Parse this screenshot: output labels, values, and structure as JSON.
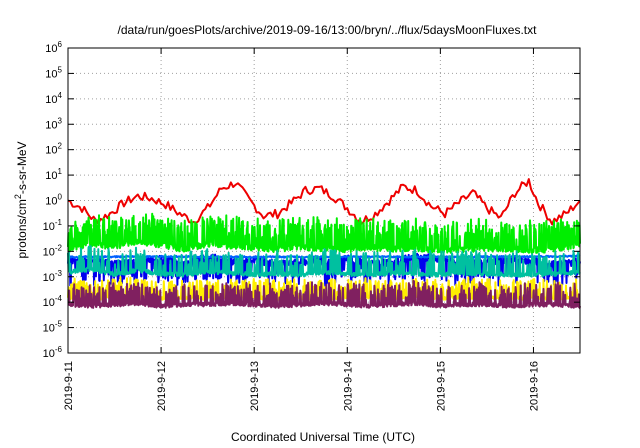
{
  "chart_data": {
    "type": "line",
    "title": "/data/run/goesPlots/archive/2019-09-16/13:00/bryn/../flux/5daysMoonFluxes.txt",
    "xlabel": "Coordinated Universal Time (UTC)",
    "ylabel_parts": [
      "protons/cm",
      "2",
      "-s-sr-MeV"
    ],
    "x_axis": {
      "unit": "days",
      "range": [
        0,
        5.5
      ],
      "ticks": [
        {
          "x": 0,
          "label": "2019-9-11"
        },
        {
          "x": 1,
          "label": "2019-9-12"
        },
        {
          "x": 2,
          "label": "2019-9-13"
        },
        {
          "x": 3,
          "label": "2019-9-14"
        },
        {
          "x": 4,
          "label": "2019-9-15"
        },
        {
          "x": 5,
          "label": "2019-9-16"
        }
      ]
    },
    "y_axis": {
      "scale": "log",
      "range_exp": [
        -6,
        6
      ],
      "tick_base": "10",
      "tick_exps": [
        "-6",
        "-5",
        "-4",
        "-3",
        "-2",
        "-1",
        "0",
        "1",
        "2",
        "3",
        "4",
        "5",
        "6"
      ]
    },
    "grid": true,
    "legend": "none",
    "series": [
      {
        "color": "#ee0000",
        "kind": "red",
        "x": [
          0,
          0.15,
          0.3,
          0.45,
          0.6,
          0.75,
          0.9,
          1.05,
          1.2,
          1.35,
          1.5,
          1.65,
          1.8,
          1.95,
          2.1,
          2.25,
          2.4,
          2.55,
          2.7,
          2.85,
          3.0,
          3.15,
          3.3,
          3.45,
          3.6,
          3.75,
          3.9,
          4.05,
          4.2,
          4.35,
          4.5,
          4.65,
          4.8,
          4.95,
          5.05,
          5.2,
          5.35,
          5.5
        ],
        "y": [
          1.0,
          0.5,
          0.15,
          0.3,
          0.8,
          1.5,
          1.2,
          0.7,
          0.3,
          0.15,
          0.5,
          3.0,
          5.0,
          1.0,
          0.25,
          0.3,
          0.8,
          2.5,
          3.0,
          1.5,
          0.5,
          0.15,
          0.3,
          1.0,
          3.5,
          2.5,
          0.6,
          0.3,
          0.8,
          2.0,
          0.5,
          0.2,
          2.0,
          6.0,
          0.8,
          0.15,
          0.3,
          1.0
        ]
      },
      {
        "color": "#00ee00",
        "kind": "green",
        "x": [
          0,
          0.25,
          0.5,
          0.75,
          1.0,
          1.25,
          1.5,
          1.75,
          2.0,
          2.25,
          2.5,
          2.75,
          3.0,
          3.25,
          3.5,
          3.75,
          4.0,
          4.25,
          4.5,
          4.75,
          5.0,
          5.25,
          5.5
        ],
        "y": [
          0.012,
          0.02,
          0.015,
          0.025,
          0.018,
          0.012,
          0.02,
          0.016,
          0.014,
          0.012,
          0.015,
          0.013,
          0.012,
          0.014,
          0.012,
          0.013,
          0.011,
          0.012,
          0.013,
          0.012,
          0.011,
          0.012,
          0.02
        ]
      },
      {
        "color": "#0000ee",
        "kind": "blue",
        "x": [
          0,
          0.25,
          0.5,
          0.75,
          1.0,
          1.25,
          1.5,
          1.75,
          2.0,
          2.25,
          2.5,
          2.75,
          3.0,
          3.25,
          3.5,
          3.75,
          4.0,
          4.25,
          4.5,
          4.75,
          5.0,
          5.25,
          5.5
        ],
        "y": [
          0.004,
          0.005,
          0.003,
          0.004,
          0.005,
          0.003,
          0.006,
          0.004,
          0.005,
          0.003,
          0.004,
          0.004,
          0.005,
          0.003,
          0.004,
          0.006,
          0.005,
          0.003,
          0.004,
          0.005,
          0.004,
          0.003,
          0.004
        ]
      },
      {
        "color": "#0060ff",
        "kind": "blue2",
        "x": [
          0,
          1,
          2,
          3,
          4,
          5,
          5.5
        ],
        "y": [
          0.006,
          0.0062,
          0.006,
          0.0061,
          0.006,
          0.0062,
          0.0065
        ]
      },
      {
        "color": "#00c0a0",
        "kind": "teal",
        "x": [
          0,
          0.25,
          0.5,
          0.75,
          1.0,
          1.25,
          1.5,
          1.75,
          2.0,
          2.25,
          2.5,
          2.75,
          3.0,
          3.25,
          3.5,
          3.75,
          4.0,
          4.25,
          4.5,
          4.75,
          5.0,
          5.25,
          5.5
        ],
        "y": [
          0.0015,
          0.002,
          0.0012,
          0.0018,
          0.0013,
          0.0012,
          0.0016,
          0.0014,
          0.0012,
          0.0013,
          0.0012,
          0.0015,
          0.0013,
          0.0012,
          0.0014,
          0.0013,
          0.0012,
          0.0014,
          0.0013,
          0.0012,
          0.0012,
          0.0013,
          0.0015
        ]
      },
      {
        "color": "#ffee00",
        "kind": "yellow",
        "x": [
          0,
          0.25,
          0.5,
          0.75,
          1.0,
          1.25,
          1.5,
          1.75,
          2.0,
          2.25,
          2.5,
          2.75,
          3.0,
          3.25,
          3.5,
          3.75,
          4.0,
          4.25,
          4.5,
          4.75,
          5.0,
          5.25,
          5.5
        ],
        "y": [
          0.00015,
          0.00014,
          0.00015,
          0.00016,
          0.00014,
          0.00015,
          0.00014,
          0.00016,
          0.00015,
          0.00014,
          0.00015,
          0.00014,
          0.00015,
          0.00016,
          0.00014,
          0.00015,
          0.00014,
          0.00015,
          0.00016,
          0.00014,
          0.00015,
          0.00014,
          0.00015
        ]
      },
      {
        "color": "#802060",
        "kind": "purple",
        "x": [
          0,
          0.25,
          0.5,
          0.75,
          1.0,
          1.25,
          1.5,
          1.75,
          2.0,
          2.25,
          2.5,
          2.75,
          3.0,
          3.25,
          3.5,
          3.75,
          4.0,
          4.25,
          4.5,
          4.75,
          5.0,
          5.25,
          5.5
        ],
        "y": [
          8e-05,
          7e-05,
          8e-05,
          9e-05,
          7e-05,
          8e-05,
          8e-05,
          9e-05,
          8e-05,
          7e-05,
          8e-05,
          9e-05,
          8e-05,
          7e-05,
          8e-05,
          9e-05,
          7e-05,
          8e-05,
          8e-05,
          7e-05,
          8e-05,
          8e-05,
          7e-05
        ]
      }
    ]
  }
}
